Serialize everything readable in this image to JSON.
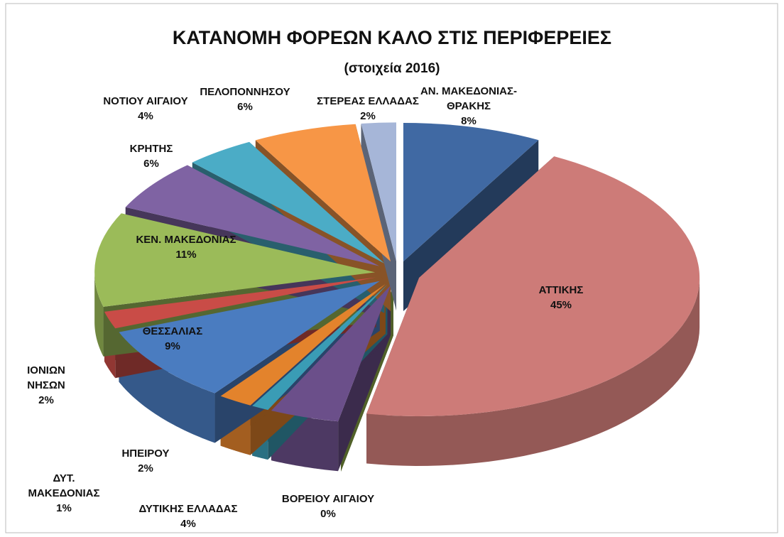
{
  "chart_data": {
    "type": "pie3d",
    "title": "ΚΑΤΑΝΟΜΗ ΦΟΡΕΩΝ ΚΑΛΟ ΣΤΙΣ ΠΕΡΙΦΕΡΕΙΕΣ",
    "subtitle": "(στοιχεία 2016)",
    "categories": [
      "ΑΝ. ΜΑΚΕΔΟΝΙΑΣ-ΘΡΑΚΗΣ",
      "ΑΤΤΙΚΗΣ",
      "ΒΟΡΕΙΟΥ ΑΙΓΑΙΟΥ",
      "ΔΥΤΙΚΗΣ ΕΛΛΑΔΑΣ",
      "ΔΥΤ. ΜΑΚΕΔΟΝΙΑΣ",
      "ΗΠΕΙΡΟΥ",
      "ΘΕΣΣΑΛΙΑΣ",
      "ΙΟΝΙΩΝ ΝΗΣΩΝ",
      "ΚΕΝ. ΜΑΚΕΔΟΝΙΑΣ",
      "ΚΡΗΤΗΣ",
      "ΝΟΤΙΟΥ ΑΙΓΑΙΟΥ",
      "ΠΕΛΟΠΟΝΝΗΣΟΥ",
      "ΣΤΕΡΕΑΣ ΕΛΛΑΔΑΣ"
    ],
    "values": [
      8,
      45,
      0,
      4,
      1,
      2,
      9,
      2,
      11,
      6,
      4,
      6,
      2
    ],
    "value_labels": [
      "8%",
      "45%",
      "0%",
      "4%",
      "1%",
      "2%",
      "9%",
      "2%",
      "11%",
      "6%",
      "4%",
      "6%",
      "2%"
    ],
    "colors": [
      "#4069a3",
      "#cd7b78",
      "#93b04a",
      "#6b4f8a",
      "#3a9cb5",
      "#e3832c",
      "#4a7cc0",
      "#c94c47",
      "#9bbb59",
      "#7f63a3",
      "#4bacc6",
      "#f79646",
      "#a6b6d8"
    ]
  }
}
